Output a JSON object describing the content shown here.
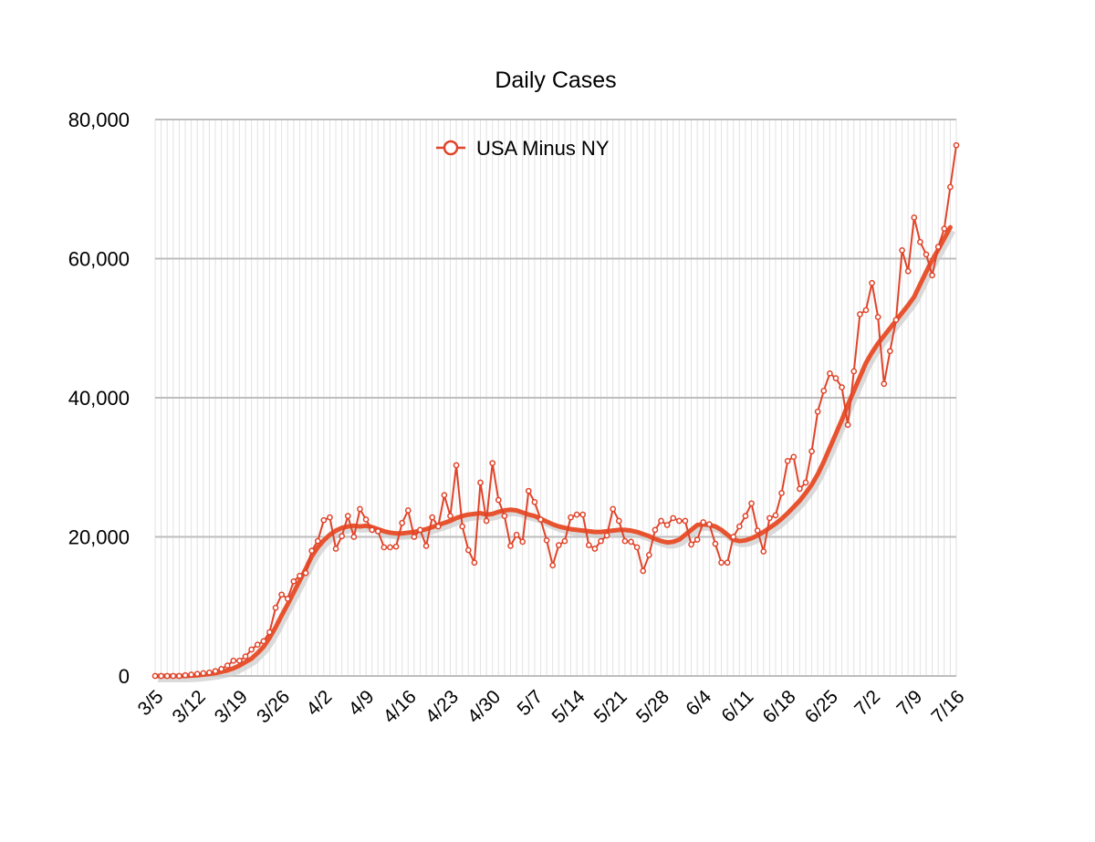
{
  "chart_data": {
    "type": "line",
    "title": "Daily Cases",
    "xlabel": "",
    "ylabel": "",
    "ylim": [
      0,
      80000
    ],
    "yticks": [
      "0",
      "20,000",
      "40,000",
      "60,000",
      "80,000"
    ],
    "ytick_values": [
      0,
      20000,
      40000,
      60000,
      80000
    ],
    "x_start": "3/5",
    "x_end": "7/16",
    "xtick_labels": [
      "3/5",
      "3/12",
      "3/19",
      "3/26",
      "4/2",
      "4/9",
      "4/16",
      "4/23",
      "4/30",
      "5/7",
      "5/14",
      "5/21",
      "5/28",
      "6/4",
      "6/11",
      "6/18",
      "6/25",
      "7/2",
      "7/9",
      "7/16"
    ],
    "grid": "horizontal major, vertical minor (daily)",
    "legend": {
      "position": "top-center",
      "entries": [
        "USA Minus NY"
      ]
    },
    "colors": {
      "series": "#e0442a",
      "smoothed": "#e8532f",
      "shadow": "#cccccc",
      "gridline": "#bdbdbd",
      "minor_grid": "#e2e2e2"
    },
    "series": [
      {
        "name": "USA Minus NY",
        "style": "line-with-markers",
        "values": [
          0,
          0,
          0,
          0,
          0,
          100,
          200,
          300,
          400,
          500,
          700,
          1000,
          1500,
          2200,
          2200,
          2800,
          3800,
          4500,
          5000,
          6300,
          9800,
          11700,
          11100,
          13600,
          14400,
          14800,
          18000,
          19400,
          22400,
          22800,
          18300,
          20100,
          23000,
          20000,
          24000,
          22500,
          21000,
          20800,
          18500,
          18500,
          18600,
          22000,
          23800,
          20000,
          21000,
          18700,
          22800,
          21500,
          26000,
          23000,
          30300,
          21500,
          18100,
          16300,
          27800,
          22300,
          30600,
          25300,
          23000,
          18700,
          20300,
          19300,
          26600,
          25000,
          22500,
          19500,
          15900,
          18800,
          19400,
          22800,
          23200,
          23200,
          18800,
          18300,
          19400,
          20200,
          24000,
          22300,
          19400,
          19300,
          18500,
          15100,
          17400,
          21000,
          22300,
          21700,
          22700,
          22300,
          22300,
          18900,
          19600,
          22100,
          21800,
          19000,
          16300,
          16300,
          20000,
          21500,
          23000,
          24800,
          20900,
          17900,
          22700,
          23100,
          26300,
          30900,
          31500,
          26900,
          27800,
          32300,
          38000,
          41000,
          43500,
          42800,
          41500,
          36100,
          43800,
          52000,
          52600,
          56500,
          51600,
          42000,
          46700,
          51200,
          61200,
          58200,
          65900,
          62400,
          60600,
          57600,
          61700,
          64300,
          70300,
          76300
        ]
      },
      {
        "name": "",
        "style": "thick-line",
        "values": [
          0,
          0,
          0,
          0,
          0,
          0,
          50,
          100,
          200,
          300,
          400,
          600,
          800,
          1100,
          1500,
          2000,
          2500,
          3300,
          4200,
          5500,
          7000,
          8700,
          10300,
          12000,
          13700,
          15400,
          17200,
          18500,
          19500,
          20300,
          20900,
          21300,
          21500,
          21600,
          21500,
          21600,
          21400,
          21100,
          20800,
          20600,
          20500,
          20500,
          20600,
          20700,
          20900,
          21100,
          21400,
          21700,
          22000,
          22300,
          22700,
          23000,
          23200,
          23300,
          23400,
          23200,
          23300,
          23600,
          23800,
          23900,
          23800,
          23500,
          23200,
          23000,
          22600,
          22200,
          21800,
          21500,
          21300,
          21100,
          21000,
          20900,
          20800,
          20700,
          20700,
          20800,
          20900,
          21000,
          21000,
          20900,
          20700,
          20400,
          20100,
          19700,
          19400,
          19200,
          19300,
          19600,
          20300,
          21000,
          21700,
          21800,
          21700,
          21500,
          21000,
          20300,
          19600,
          19400,
          19500,
          19800,
          20200,
          20700,
          21300,
          21900,
          22600,
          23400,
          24300,
          25200,
          26300,
          27500,
          29000,
          30800,
          32800,
          34800,
          36800,
          39000,
          41000,
          43000,
          45000,
          46500,
          47800,
          48900,
          50000,
          51100,
          52200,
          53300,
          54500,
          56300,
          58100,
          59800,
          61300,
          62900,
          64500
        ]
      }
    ]
  }
}
